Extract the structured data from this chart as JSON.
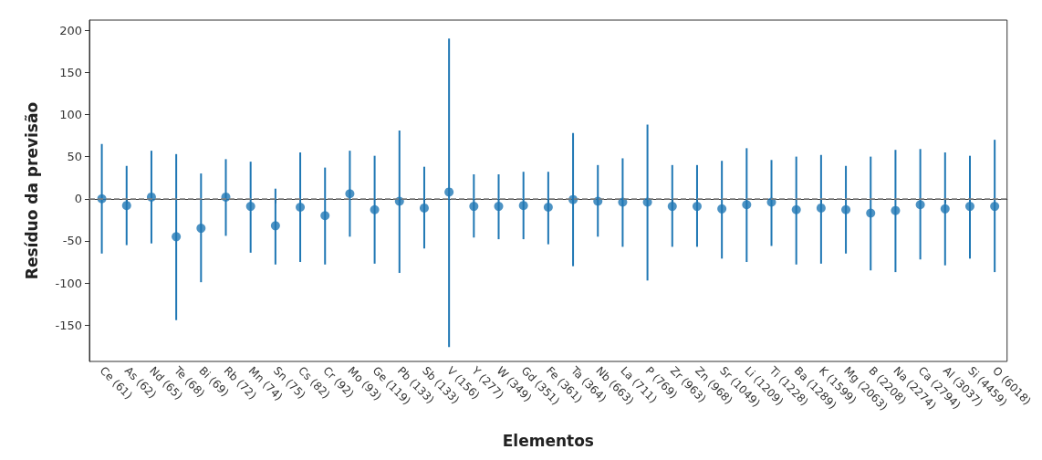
{
  "chart_data": {
    "type": "scatter",
    "xlabel": "Elementos",
    "ylabel": "Resíduo da previsão",
    "categories": [
      "Ce (61)",
      "As (62)",
      "Nd (65)",
      "Te (68)",
      "Bi (69)",
      "Rb (72)",
      "Mn (74)",
      "Sn (75)",
      "Cs (82)",
      "Cr (92)",
      "Mo (93)",
      "Ge (119)",
      "Pb (133)",
      "Sb (133)",
      "V (156)",
      "Y (277)",
      "W (349)",
      "Gd (351)",
      "Fe (361)",
      "Ta (364)",
      "Nb (663)",
      "La (711)",
      "P (769)",
      "Zr (963)",
      "Zn (968)",
      "Sr (1049)",
      "Li (1209)",
      "Ti (1228)",
      "Ba (1289)",
      "K (1599)",
      "Mg (2063)",
      "B (2208)",
      "Na (2274)",
      "Ca (2794)",
      "Al (3037)",
      "Si (4459)",
      "O (6018)"
    ],
    "series": [
      {
        "color": "#1f77b4",
        "values": [
          0,
          -8,
          2,
          -45,
          -35,
          2,
          -9,
          -32,
          -10,
          -20,
          6,
          -13,
          -3,
          -11,
          8,
          -9,
          -9,
          -8,
          -10,
          -1,
          -3,
          -4,
          -4,
          -9,
          -9,
          -12,
          -7,
          -4,
          -13,
          -11,
          -13,
          -17,
          -14,
          -7,
          -12,
          -9,
          -9
        ],
        "errors": [
          [
            -65,
            65
          ],
          [
            -55,
            39
          ],
          [
            -53,
            57
          ],
          [
            -144,
            53
          ],
          [
            -99,
            30
          ],
          [
            -44,
            47
          ],
          [
            -64,
            44
          ],
          [
            -78,
            12
          ],
          [
            -75,
            55
          ],
          [
            -78,
            37
          ],
          [
            -45,
            57
          ],
          [
            -77,
            51
          ],
          [
            -88,
            81
          ],
          [
            -59,
            38
          ],
          [
            -176,
            190
          ],
          [
            -46,
            29
          ],
          [
            -48,
            29
          ],
          [
            -48,
            32
          ],
          [
            -54,
            32
          ],
          [
            -80,
            78
          ],
          [
            -45,
            40
          ],
          [
            -57,
            48
          ],
          [
            -97,
            88
          ],
          [
            -57,
            40
          ],
          [
            -57,
            40
          ],
          [
            -71,
            45
          ],
          [
            -75,
            60
          ],
          [
            -56,
            46
          ],
          [
            -78,
            50
          ],
          [
            -77,
            52
          ],
          [
            -65,
            39
          ],
          [
            -85,
            50
          ],
          [
            -87,
            58
          ],
          [
            -72,
            59
          ],
          [
            -79,
            55
          ],
          [
            -71,
            51
          ],
          [
            -87,
            70
          ]
        ]
      }
    ],
    "ylim": [
      -193,
      212
    ],
    "yticks": [
      -150,
      -100,
      -50,
      0,
      50,
      100,
      150,
      200
    ],
    "ref_lines": [
      {
        "axis": "y",
        "value": 0,
        "color": "#808080",
        "line_style": "dashed"
      }
    ],
    "marker": "circle",
    "grid": false
  }
}
